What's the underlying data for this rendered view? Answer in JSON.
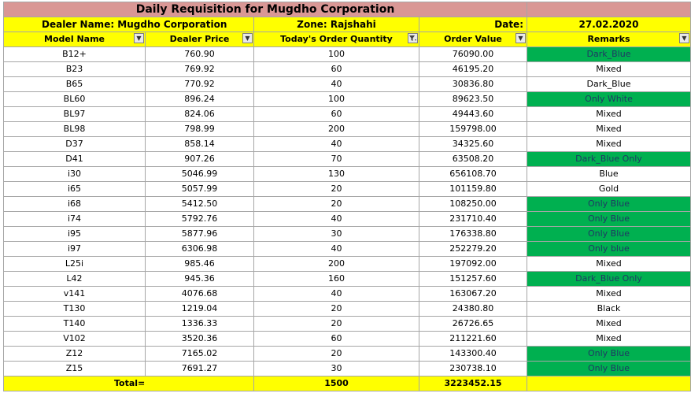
{
  "title": "Daily Requisition for Mugdho Corporation",
  "info": {
    "dealer_name": "Dealer Name:  Mugdho Corporation",
    "zone": "Zone: Rajshahi",
    "date_label": "Date:",
    "date_value": "27.02.2020"
  },
  "headers": [
    "Model Name",
    "Dealer Price",
    "Today's Order Quantity",
    "Order Value",
    "Remarks"
  ],
  "icons": {
    "dropdown": "chevron-down-icon",
    "filter": "filter-icon"
  },
  "colors": {
    "title_bg": "#d99795",
    "header_bg": "#ffff00",
    "remark_green": "#00b050"
  },
  "rows": [
    {
      "model": "B12+",
      "price": "760.90",
      "qty": "100",
      "value": "76090.00",
      "remark": "Dark_Blue",
      "green": true
    },
    {
      "model": "B23",
      "price": "769.92",
      "qty": "60",
      "value": "46195.20",
      "remark": "Mixed",
      "green": false
    },
    {
      "model": "B65",
      "price": "770.92",
      "qty": "40",
      "value": "30836.80",
      "remark": "Dark_Blue",
      "green": false
    },
    {
      "model": "BL60",
      "price": "896.24",
      "qty": "100",
      "value": "89623.50",
      "remark": "Only White",
      "green": true
    },
    {
      "model": "BL97",
      "price": "824.06",
      "qty": "60",
      "value": "49443.60",
      "remark": "Mixed",
      "green": false
    },
    {
      "model": "BL98",
      "price": "798.99",
      "qty": "200",
      "value": "159798.00",
      "remark": "Mixed",
      "green": false
    },
    {
      "model": "D37",
      "price": "858.14",
      "qty": "40",
      "value": "34325.60",
      "remark": "Mixed",
      "green": false
    },
    {
      "model": "D41",
      "price": "907.26",
      "qty": "70",
      "value": "63508.20",
      "remark": "Dark_Blue Only",
      "green": true
    },
    {
      "model": "i30",
      "price": "5046.99",
      "qty": "130",
      "value": "656108.70",
      "remark": "Blue",
      "green": false
    },
    {
      "model": "i65",
      "price": "5057.99",
      "qty": "20",
      "value": "101159.80",
      "remark": "Gold",
      "green": false
    },
    {
      "model": "i68",
      "price": "5412.50",
      "qty": "20",
      "value": "108250.00",
      "remark": "Only Blue",
      "green": true
    },
    {
      "model": "i74",
      "price": "5792.76",
      "qty": "40",
      "value": "231710.40",
      "remark": "Only Blue",
      "green": true
    },
    {
      "model": "i95",
      "price": "5877.96",
      "qty": "30",
      "value": "176338.80",
      "remark": "Only Blue",
      "green": true
    },
    {
      "model": "i97",
      "price": "6306.98",
      "qty": "40",
      "value": "252279.20",
      "remark": "Only blue",
      "green": true
    },
    {
      "model": "L25i",
      "price": "985.46",
      "qty": "200",
      "value": "197092.00",
      "remark": "Mixed",
      "green": false
    },
    {
      "model": "L42",
      "price": "945.36",
      "qty": "160",
      "value": "151257.60",
      "remark": "Dark_Blue Only",
      "green": true
    },
    {
      "model": "v141",
      "price": "4076.68",
      "qty": "40",
      "value": "163067.20",
      "remark": "Mixed",
      "green": false
    },
    {
      "model": "T130",
      "price": "1219.04",
      "qty": "20",
      "value": "24380.80",
      "remark": "Black",
      "green": false
    },
    {
      "model": "T140",
      "price": "1336.33",
      "qty": "20",
      "value": "26726.65",
      "remark": "Mixed",
      "green": false
    },
    {
      "model": "V102",
      "price": "3520.36",
      "qty": "60",
      "value": "211221.60",
      "remark": "Mixed",
      "green": false
    },
    {
      "model": "Z12",
      "price": "7165.02",
      "qty": "20",
      "value": "143300.40",
      "remark": "Only Blue",
      "green": true
    },
    {
      "model": "Z15",
      "price": "7691.27",
      "qty": "30",
      "value": "230738.10",
      "remark": "Only Blue",
      "green": true
    }
  ],
  "total": {
    "label": "Total=",
    "qty": "1500",
    "value": "3223452.15"
  }
}
